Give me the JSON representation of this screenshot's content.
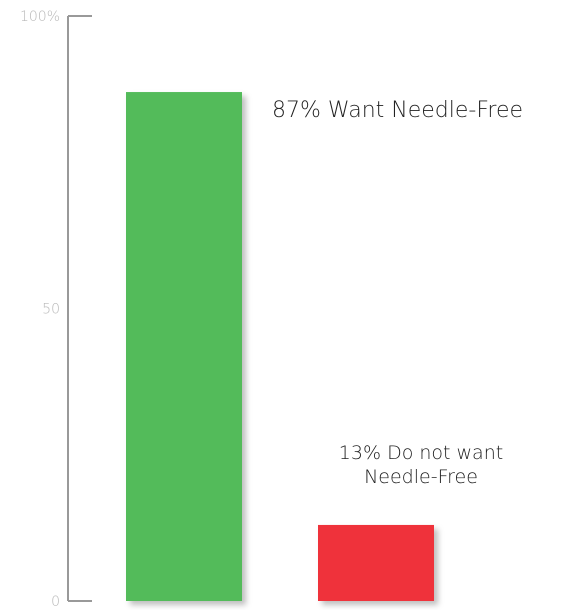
{
  "chart_data": {
    "type": "bar",
    "categories": [
      "Want Needle-Free",
      "Do not want Needle-Free"
    ],
    "values": [
      87,
      13
    ],
    "colors": [
      "#52bb5a",
      "#ef333a"
    ],
    "data_labels": [
      [
        "87% Want Needle-Free"
      ],
      [
        "13% Do not want",
        "Needle-Free"
      ]
    ],
    "ylim": [
      0,
      100
    ],
    "yticks": [
      {
        "value": 0,
        "label": "0"
      },
      {
        "value": 50,
        "label": "50"
      },
      {
        "value": 100,
        "label": "100%"
      }
    ],
    "axis_color": "#999999",
    "grid": false
  }
}
